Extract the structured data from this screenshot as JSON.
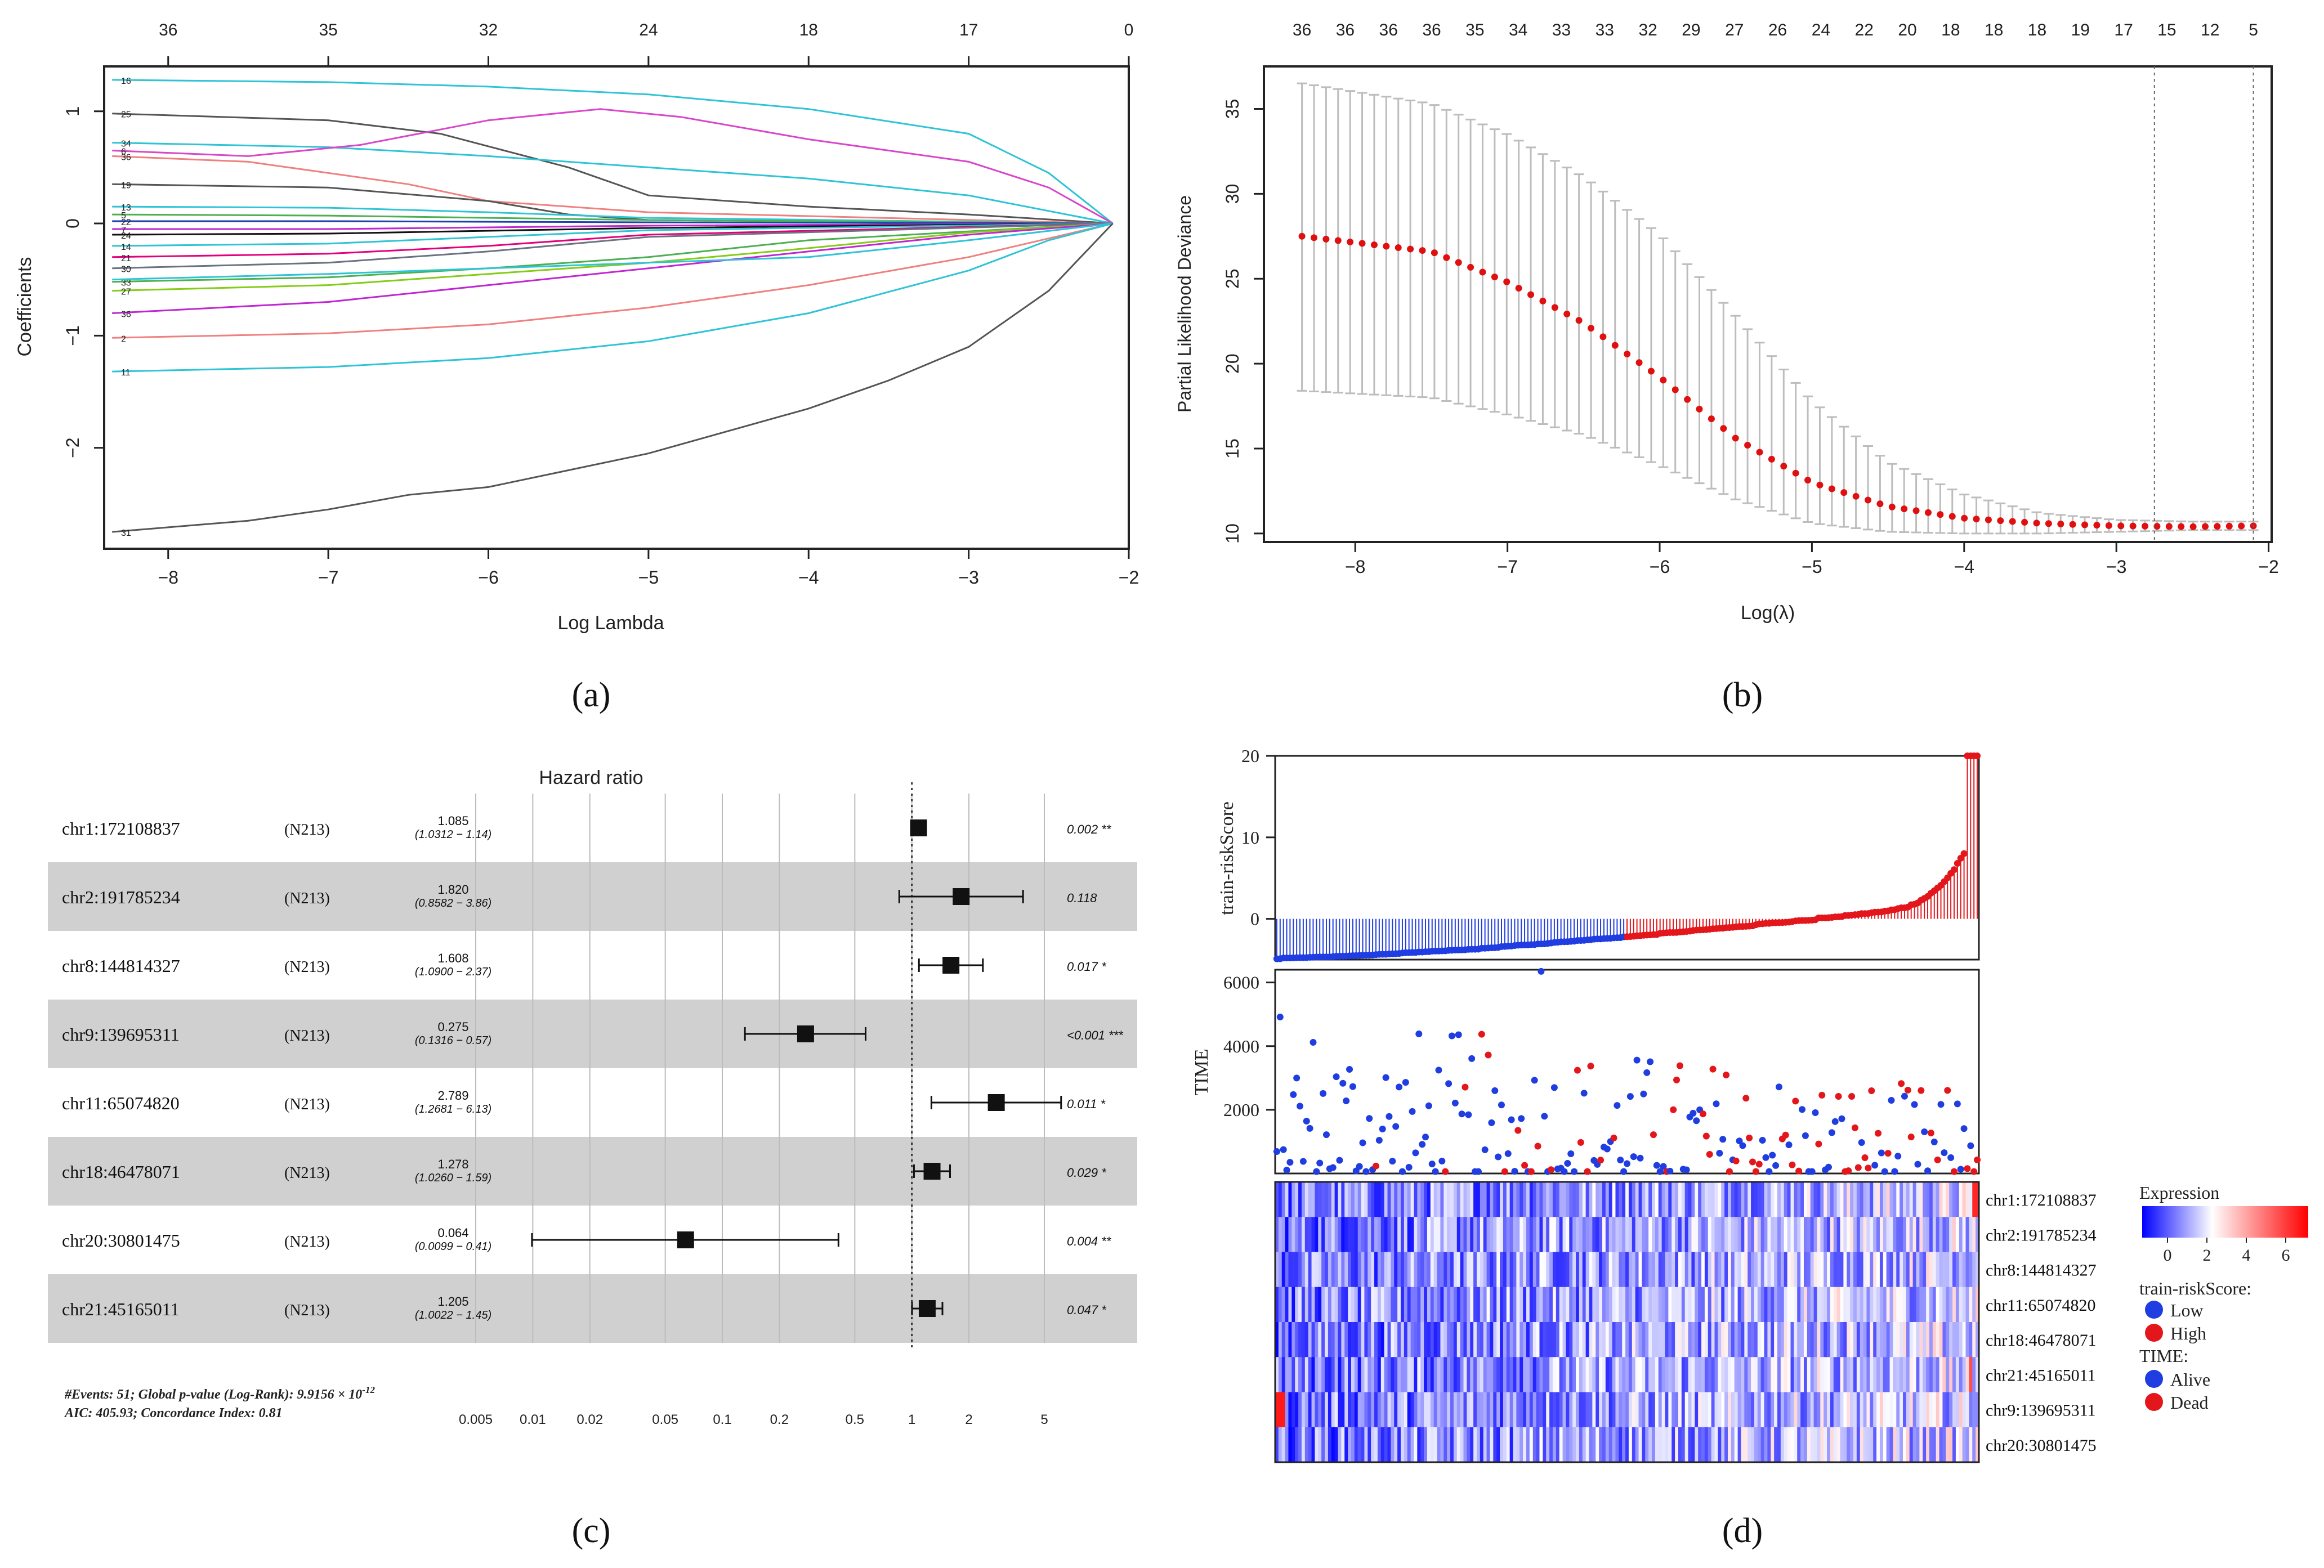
{
  "panel_labels": [
    "(a)",
    "(b)",
    "(c)",
    "(d)"
  ],
  "chart_data": [
    {
      "panel": "(a)",
      "type": "line",
      "xlabel": "Log Lambda",
      "ylabel": "Coefficients",
      "xlim": [
        -8.4,
        -2.0
      ],
      "ylim": [
        -2.9,
        1.4
      ],
      "x_ticks": [
        -8,
        -7,
        -6,
        -5,
        -4,
        -3,
        -2
      ],
      "y_ticks": [
        -2,
        -1,
        0,
        1
      ],
      "top_ticks": [
        {
          "x": -8,
          "label": "36"
        },
        {
          "x": -7,
          "label": "35"
        },
        {
          "x": -6,
          "label": "32"
        },
        {
          "x": -5,
          "label": "24"
        },
        {
          "x": -4,
          "label": "18"
        },
        {
          "x": -3,
          "label": "17"
        },
        {
          "x": -2,
          "label": "0"
        }
      ],
      "convergence_x": -2.1,
      "series": [
        {
          "name": "16",
          "color": "#2ec4d6",
          "points": [
            [
              -8.35,
              1.28
            ],
            [
              -7,
              1.26
            ],
            [
              -6,
              1.22
            ],
            [
              -5,
              1.15
            ],
            [
              -4,
              1.02
            ],
            [
              -3,
              0.8
            ],
            [
              -2.5,
              0.45
            ],
            [
              -2.1,
              0
            ]
          ]
        },
        {
          "name": "25",
          "color": "#555555",
          "points": [
            [
              -8.35,
              0.98
            ],
            [
              -7,
              0.92
            ],
            [
              -6.3,
              0.8
            ],
            [
              -5.5,
              0.5
            ],
            [
              -5,
              0.25
            ],
            [
              -4,
              0.15
            ],
            [
              -3,
              0.08
            ],
            [
              -2.1,
              0
            ]
          ]
        },
        {
          "name": "34",
          "color": "#2ec4d6",
          "points": [
            [
              -8.35,
              0.72
            ],
            [
              -7,
              0.68
            ],
            [
              -6,
              0.6
            ],
            [
              -5,
              0.5
            ],
            [
              -4,
              0.4
            ],
            [
              -3,
              0.25
            ],
            [
              -2.1,
              0
            ]
          ]
        },
        {
          "name": "6",
          "color": "#d946c9",
          "points": [
            [
              -8.35,
              0.65
            ],
            [
              -7.5,
              0.6
            ],
            [
              -6.8,
              0.7
            ],
            [
              -6,
              0.92
            ],
            [
              -5.3,
              1.02
            ],
            [
              -4.8,
              0.95
            ],
            [
              -4,
              0.75
            ],
            [
              -3,
              0.55
            ],
            [
              -2.5,
              0.32
            ],
            [
              -2.1,
              0
            ]
          ]
        },
        {
          "name": "36",
          "color": "#f08080",
          "points": [
            [
              -8.35,
              0.6
            ],
            [
              -7.5,
              0.55
            ],
            [
              -6.5,
              0.35
            ],
            [
              -6,
              0.2
            ],
            [
              -5,
              0.1
            ],
            [
              -2.1,
              0
            ]
          ]
        },
        {
          "name": "19",
          "color": "#555555",
          "points": [
            [
              -8.35,
              0.35
            ],
            [
              -7,
              0.32
            ],
            [
              -6,
              0.2
            ],
            [
              -5.5,
              0.08
            ],
            [
              -5,
              0.03
            ],
            [
              -2.1,
              0
            ]
          ]
        },
        {
          "name": "13",
          "color": "#2ec4d6",
          "points": [
            [
              -8.35,
              0.15
            ],
            [
              -7,
              0.14
            ],
            [
              -6,
              0.1
            ],
            [
              -5,
              0.05
            ],
            [
              -2.1,
              0
            ]
          ]
        },
        {
          "name": "5",
          "color": "#4caf50",
          "points": [
            [
              -8.35,
              0.08
            ],
            [
              -7,
              0.07
            ],
            [
              -5,
              0.03
            ],
            [
              -2.1,
              0
            ]
          ]
        },
        {
          "name": "22",
          "color": "#1e40af",
          "points": [
            [
              -8.35,
              0.02
            ],
            [
              -7,
              0.02
            ],
            [
              -5,
              0.01
            ],
            [
              -2.1,
              0
            ]
          ]
        },
        {
          "name": "7",
          "color": "#c026d3",
          "points": [
            [
              -8.35,
              -0.05
            ],
            [
              -7,
              -0.05
            ],
            [
              -5,
              -0.02
            ],
            [
              -2.1,
              0
            ]
          ]
        },
        {
          "name": "24",
          "color": "#111111",
          "points": [
            [
              -8.35,
              -0.1
            ],
            [
              -7,
              -0.09
            ],
            [
              -5,
              -0.04
            ],
            [
              -2.1,
              0
            ]
          ]
        },
        {
          "name": "14",
          "color": "#2ec4d6",
          "points": [
            [
              -8.35,
              -0.2
            ],
            [
              -7,
              -0.18
            ],
            [
              -6,
              -0.12
            ],
            [
              -5,
              -0.06
            ],
            [
              -2.1,
              0
            ]
          ]
        },
        {
          "name": "21",
          "color": "#e4007c",
          "points": [
            [
              -8.35,
              -0.3
            ],
            [
              -7,
              -0.27
            ],
            [
              -6,
              -0.2
            ],
            [
              -5,
              -0.1
            ],
            [
              -2.1,
              0
            ]
          ]
        },
        {
          "name": "30",
          "color": "#6b7280",
          "points": [
            [
              -8.35,
              -0.4
            ],
            [
              -7,
              -0.35
            ],
            [
              -6,
              -0.25
            ],
            [
              -5,
              -0.12
            ],
            [
              -2.1,
              0
            ]
          ]
        },
        {
          "name": "33",
          "color": "#4caf50",
          "points": [
            [
              -8.35,
              -0.52
            ],
            [
              -7,
              -0.48
            ],
            [
              -6,
              -0.4
            ],
            [
              -5,
              -0.3
            ],
            [
              -4,
              -0.15
            ],
            [
              -2.1,
              0
            ]
          ]
        },
        {
          "name": "27",
          "color": "#84cc16",
          "points": [
            [
              -8.35,
              -0.6
            ],
            [
              -7,
              -0.55
            ],
            [
              -6,
              -0.45
            ],
            [
              -5,
              -0.35
            ],
            [
              -4,
              -0.22
            ],
            [
              -3,
              -0.08
            ],
            [
              -2.1,
              0
            ]
          ]
        },
        {
          "name": "36",
          "color": "#c026d3",
          "points": [
            [
              -8.35,
              -0.8
            ],
            [
              -7,
              -0.7
            ],
            [
              -6,
              -0.55
            ],
            [
              -5,
              -0.4
            ],
            [
              -4,
              -0.25
            ],
            [
              -3,
              -0.1
            ],
            [
              -2.1,
              0
            ]
          ]
        },
        {
          "name": "2",
          "color": "#f08080",
          "points": [
            [
              -8.35,
              -1.02
            ],
            [
              -7,
              -0.98
            ],
            [
              -6,
              -0.9
            ],
            [
              -5,
              -0.75
            ],
            [
              -4,
              -0.55
            ],
            [
              -3,
              -0.3
            ],
            [
              -2.1,
              0
            ]
          ]
        },
        {
          "name": "",
          "color": "#2ec4d6",
          "points": [
            [
              -8.35,
              -0.5
            ],
            [
              -7,
              -0.45
            ],
            [
              -6,
              -0.4
            ],
            [
              -5,
              -0.35
            ],
            [
              -4,
              -0.3
            ],
            [
              -3,
              -0.15
            ],
            [
              -2.1,
              0
            ]
          ]
        },
        {
          "name": "11",
          "color": "#2ec4d6",
          "points": [
            [
              -8.35,
              -1.32
            ],
            [
              -7,
              -1.28
            ],
            [
              -6,
              -1.2
            ],
            [
              -5,
              -1.05
            ],
            [
              -4,
              -0.8
            ],
            [
              -3,
              -0.42
            ],
            [
              -2.5,
              -0.15
            ],
            [
              -2.1,
              0
            ]
          ]
        },
        {
          "name": "31",
          "color": "#555555",
          "points": [
            [
              -8.35,
              -2.75
            ],
            [
              -7.5,
              -2.65
            ],
            [
              -7,
              -2.55
            ],
            [
              -6.5,
              -2.42
            ],
            [
              -6,
              -2.35
            ],
            [
              -5.5,
              -2.2
            ],
            [
              -5,
              -2.05
            ],
            [
              -4.5,
              -1.85
            ],
            [
              -4,
              -1.65
            ],
            [
              -3.5,
              -1.4
            ],
            [
              -3,
              -1.1
            ],
            [
              -2.5,
              -0.6
            ],
            [
              -2.2,
              -0.15
            ],
            [
              -2.1,
              0
            ]
          ]
        }
      ]
    },
    {
      "panel": "(b)",
      "type": "scatter",
      "xlabel": "Log(λ)",
      "ylabel": "Partial Likelihood Deviance",
      "xlim": [
        -8.6,
        -1.98
      ],
      "ylim": [
        9.5,
        37.5
      ],
      "x_ticks": [
        -8,
        -7,
        -6,
        -5,
        -4,
        -3,
        -2
      ],
      "y_ticks": [
        10,
        15,
        20,
        25,
        30,
        35
      ],
      "top_ticks": [
        "36",
        "36",
        "36",
        "36",
        "35",
        "34",
        "33",
        "33",
        "32",
        "29",
        "27",
        "26",
        "24",
        "22",
        "20",
        "18",
        "18",
        "18",
        "19",
        "17",
        "15",
        "12",
        "5"
      ],
      "vertical_lines": [
        -2.75,
        -2.1
      ],
      "n_points": 80,
      "points_anchor": {
        "x": [
          -8.35,
          -7.5,
          -7,
          -6.5,
          -6,
          -5.5,
          -5,
          -4.5,
          -4,
          -3.5,
          -3,
          -2.5,
          -2.1
        ],
        "mean": [
          27.5,
          26.6,
          24.8,
          22.4,
          19.2,
          15.6,
          13.0,
          11.6,
          10.9,
          10.6,
          10.45,
          10.4,
          10.45
        ],
        "upper": [
          36.5,
          35.3,
          33.5,
          31.0,
          27.6,
          22.8,
          17.8,
          14.2,
          12.3,
          11.2,
          10.8,
          10.7,
          10.7
        ],
        "lower": [
          18.4,
          18.0,
          17.0,
          15.8,
          14.0,
          12.0,
          10.6,
          10.1,
          10.0,
          10.0,
          10.1,
          10.2,
          10.2
        ]
      }
    },
    {
      "panel": "(c)",
      "type": "forest",
      "title": "Hazard ratio",
      "x_ticks": [
        "0.005",
        "0.01",
        "0.02",
        "0.05",
        "0.1",
        "0.2",
        "0.5",
        "1",
        "2",
        "5"
      ],
      "x_tick_values": [
        0.005,
        0.01,
        0.02,
        0.05,
        0.1,
        0.2,
        0.5,
        1,
        2,
        5
      ],
      "rows": [
        {
          "name": "chr1:172108837",
          "n": "(N213)",
          "hr": "1.085",
          "ci": "(1.0312 − 1.14)",
          "p": "0.002 **",
          "hr_v": 1.085,
          "lo": 1.0312,
          "hi": 1.14
        },
        {
          "name": "chr2:191785234",
          "n": "(N213)",
          "hr": "1.820",
          "ci": "(0.8582 − 3.86)",
          "p": "0.118",
          "hr_v": 1.82,
          "lo": 0.8582,
          "hi": 3.86
        },
        {
          "name": "chr8:144814327",
          "n": "(N213)",
          "hr": "1.608",
          "ci": "(1.0900 − 2.37)",
          "p": "0.017 *",
          "hr_v": 1.608,
          "lo": 1.09,
          "hi": 2.37
        },
        {
          "name": "chr9:139695311",
          "n": "(N213)",
          "hr": "0.275",
          "ci": "(0.1316 − 0.57)",
          "p": "<0.001 ***",
          "hr_v": 0.275,
          "lo": 0.1316,
          "hi": 0.57
        },
        {
          "name": "chr11:65074820",
          "n": "(N213)",
          "hr": "2.789",
          "ci": "(1.2681 − 6.13)",
          "p": "0.011 *",
          "hr_v": 2.789,
          "lo": 1.2681,
          "hi": 6.13
        },
        {
          "name": "chr18:46478071",
          "n": "(N213)",
          "hr": "1.278",
          "ci": "(1.0260 − 1.59)",
          "p": "0.029 *",
          "hr_v": 1.278,
          "lo": 1.026,
          "hi": 1.59
        },
        {
          "name": "chr20:30801475",
          "n": "(N213)",
          "hr": "0.064",
          "ci": "(0.0099 − 0.41)",
          "p": "0.004 **",
          "hr_v": 0.064,
          "lo": 0.0099,
          "hi": 0.41
        },
        {
          "name": "chr21:45165011",
          "n": "(N213)",
          "hr": "1.205",
          "ci": "(1.0022 − 1.45)",
          "p": "0.047 *",
          "hr_v": 1.205,
          "lo": 1.0022,
          "hi": 1.45
        }
      ],
      "footer_line1": "#Events: 51; Global p-value (Log-Rank): 9.9156 × 10",
      "footer_exp": "-12",
      "footer_line2": "AIC: 405.93; Concordance Index: 0.81"
    },
    {
      "panel": "(d)",
      "type": "heatmap",
      "risk_ylabel": "train-riskScore",
      "risk_y_ticks": [
        0,
        10,
        20
      ],
      "risk_ylim": [
        -5,
        20
      ],
      "time_ylabel": "TIME",
      "time_y_ticks": [
        2000,
        4000,
        6000
      ],
      "time_ylim": [
        0,
        6400
      ],
      "n_samples": 213,
      "n_low": 106,
      "genes": [
        "chr1:172108837",
        "chr2:191785234",
        "chr8:144814327",
        "chr11:65074820",
        "chr18:46478071",
        "chr21:45165011",
        "chr9:139695311",
        "chr20:30801475"
      ],
      "legend": {
        "title": "Expression",
        "ticks": [
          "0",
          "2",
          "4",
          "6"
        ],
        "risk_title": "train-riskScore:",
        "low": "Low",
        "high": "High",
        "time_title": "TIME:",
        "alive": "Alive",
        "dead": "Dead"
      },
      "colors": {
        "low": "#1f3de0",
        "high": "#e3161b",
        "heat_low": "#0000ff",
        "heat_mid": "#ffffff",
        "heat_high": "#ff0000"
      }
    }
  ]
}
